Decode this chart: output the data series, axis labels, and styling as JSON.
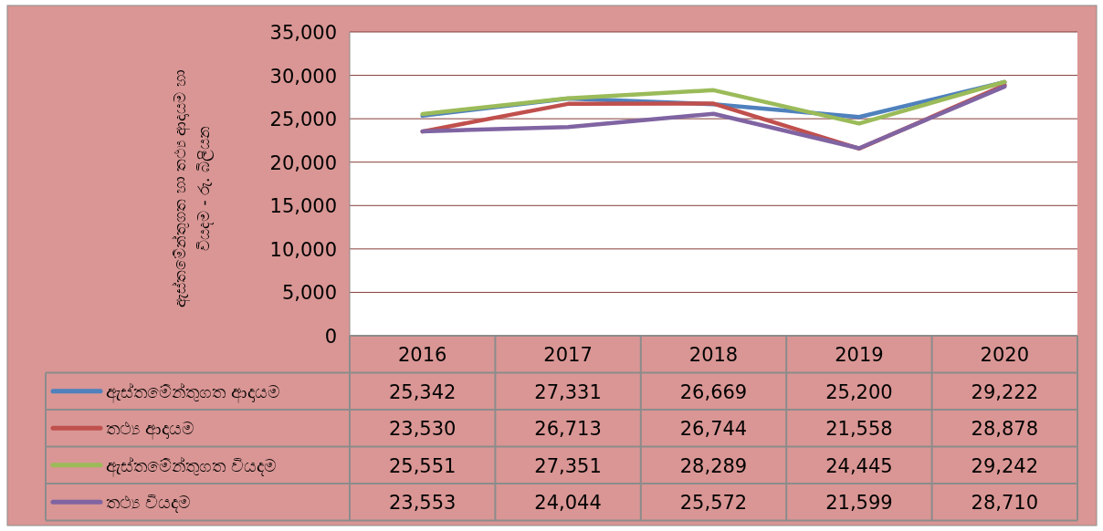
{
  "chart_data": {
    "type": "line",
    "ylabel": "ඇස්තමේන්තුගත හා තථ්‍ය ආදායම හා වියදම - රු. බිලියන",
    "categories": [
      "2016",
      "2017",
      "2018",
      "2019",
      "2020"
    ],
    "series": [
      {
        "name": "ඇස්තමේන්තුගත ආදායම",
        "color": "#4f81bd",
        "values": [
          25342,
          27331,
          26669,
          25200,
          29222
        ],
        "value_labels": [
          "25,342",
          "27,331",
          "26,669",
          "25,200",
          "29,222"
        ]
      },
      {
        "name": "තථ්‍ය ආදායම",
        "color": "#c0504d",
        "values": [
          23530,
          26713,
          26744,
          21558,
          28878
        ],
        "value_labels": [
          "23,530",
          "26,713",
          "26,744",
          "21,558",
          "28,878"
        ]
      },
      {
        "name": "ඇස්තමේන්තුගත වියදම",
        "color": "#9bbb59",
        "values": [
          25551,
          27351,
          28289,
          24445,
          29242
        ],
        "value_labels": [
          "25,551",
          "27,351",
          "28,289",
          "24,445",
          "29,242"
        ]
      },
      {
        "name": "තථ්‍ය වියදම",
        "color": "#8064a2",
        "values": [
          23553,
          24044,
          25572,
          21599,
          28710
        ],
        "value_labels": [
          "23,553",
          "24,044",
          "25,572",
          "21,599",
          "28,710"
        ]
      }
    ],
    "ylim": [
      0,
      35000
    ],
    "yticks": [
      {
        "value": 0,
        "label": "0"
      },
      {
        "value": 5000,
        "label": "5,000"
      },
      {
        "value": 10000,
        "label": "10,000"
      },
      {
        "value": 15000,
        "label": "15,000"
      },
      {
        "value": 20000,
        "label": "20,000"
      },
      {
        "value": 25000,
        "label": "25,000"
      },
      {
        "value": 30000,
        "label": "30,000"
      },
      {
        "value": 35000,
        "label": "35,000"
      }
    ],
    "grid": "y",
    "legend": "bottom",
    "marker": "none",
    "line_style": "solid"
  }
}
